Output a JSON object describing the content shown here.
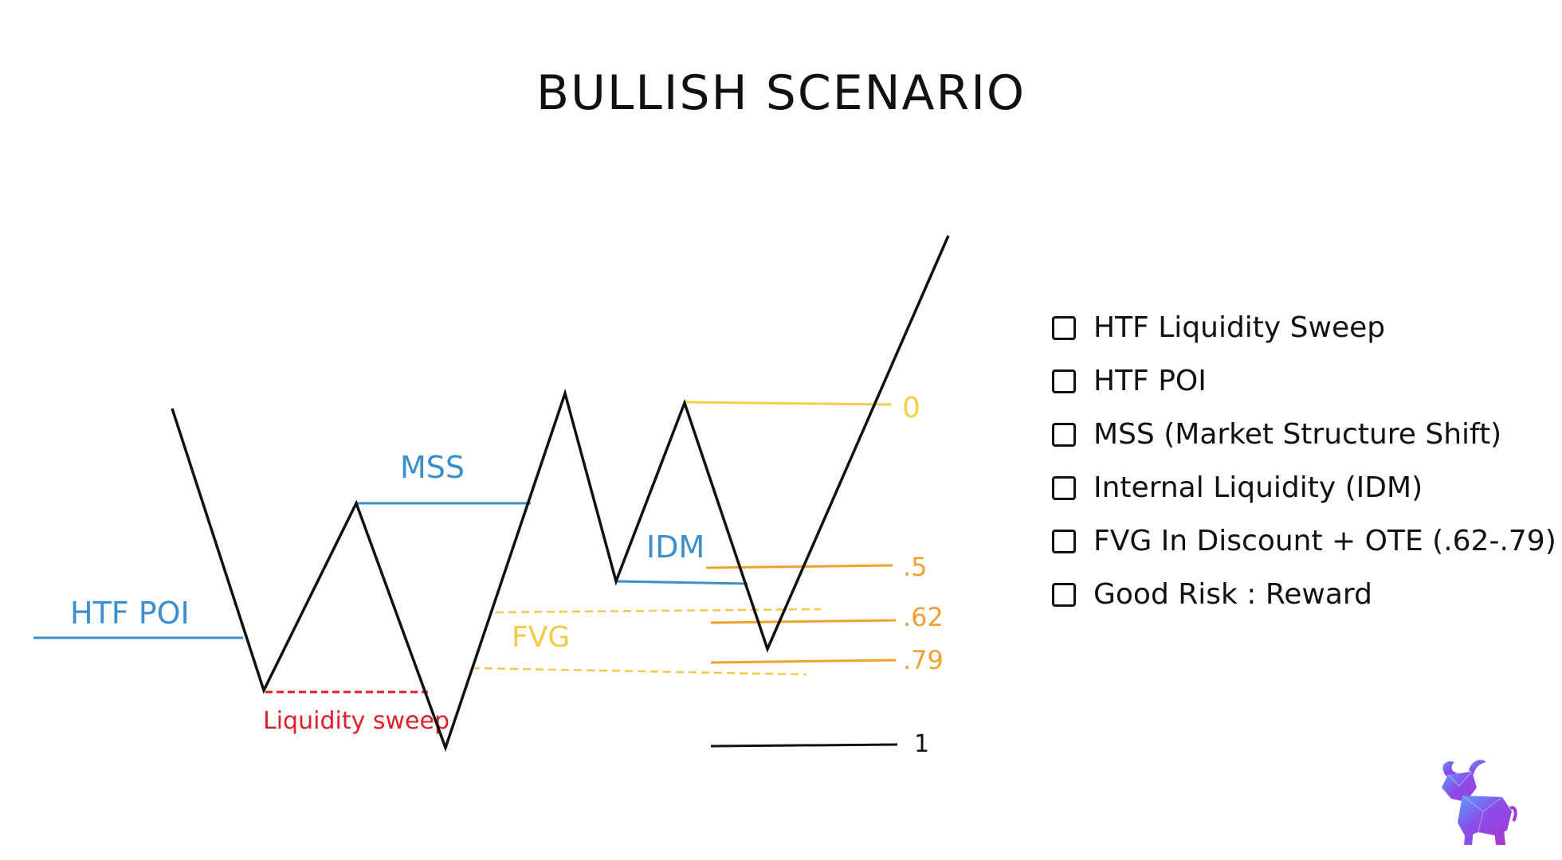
{
  "title": "BULLISH SCENARIO",
  "labels": {
    "htf_poi": "HTF POI",
    "mss": "MSS",
    "idm": "IDM",
    "fvg": "FVG",
    "liquidity_sweep": "Liquidity sweep"
  },
  "fib_levels": {
    "zero": "0",
    "half": ".5",
    "sixty_two": ".62",
    "seventy_nine": ".79",
    "one": "1"
  },
  "checklist": [
    "HTF Liquidity Sweep",
    "HTF POI",
    "MSS (Market Structure Shift)",
    "Internal Liquidity (IDM)",
    "FVG In Discount + OTE (.62-.79)",
    "Good Risk : Reward"
  ],
  "colors": {
    "price_line": "#111111",
    "structure_blue": "#3b8fcc",
    "liquidity_red": "#e01f2d",
    "fvg_yellow": "#f3c94a",
    "fib_orange": "#f0a030",
    "fib_zero_yellow": "#f5cf4c"
  },
  "icons": {
    "logo": "bull-logo-icon",
    "checkbox": "checkbox-icon"
  }
}
